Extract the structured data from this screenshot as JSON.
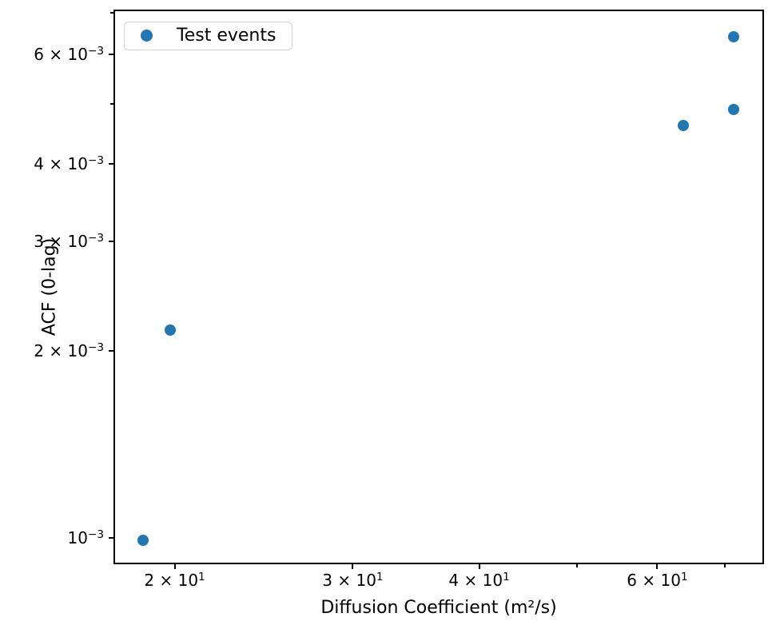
{
  "figure": {
    "background": "#ffffff"
  },
  "chart_data": {
    "type": "scatter",
    "title": "",
    "xlabel": "Diffusion Coefficient (m²/s)",
    "ylabel": "ACF (0-lag)",
    "xscale": "log",
    "yscale": "log",
    "xlim": [
      17.4,
      76.5
    ],
    "ylim": [
      0.000907,
      0.00709
    ],
    "grid": false,
    "legend": {
      "label": "Test events",
      "position": "upper-left"
    },
    "series": [
      {
        "name": "Test events",
        "marker": "circle",
        "color": "#1f77b4",
        "points": [
          {
            "x": 18.6,
            "y": 0.00099
          },
          {
            "x": 19.8,
            "y": 0.00216
          },
          {
            "x": 63.7,
            "y": 0.00461
          },
          {
            "x": 71.4,
            "y": 0.0049
          },
          {
            "x": 71.4,
            "y": 0.00641
          }
        ]
      }
    ],
    "x_ticks": [
      {
        "value": 20,
        "base": "2 × 10",
        "exp": "1"
      },
      {
        "value": 30,
        "base": "3 × 10",
        "exp": "1"
      },
      {
        "value": 40,
        "base": "4 × 10",
        "exp": "1"
      },
      {
        "value": 60,
        "base": "6 × 10",
        "exp": "1"
      }
    ],
    "x_minor_ticks": [
      50,
      70
    ],
    "y_ticks": [
      {
        "value": 0.001,
        "base": "10",
        "exp": "−3"
      },
      {
        "value": 0.002,
        "base": "2 × 10",
        "exp": "−3"
      },
      {
        "value": 0.003,
        "base": "3 × 10",
        "exp": "−3"
      },
      {
        "value": 0.004,
        "base": "4 × 10",
        "exp": "−3"
      },
      {
        "value": 0.006,
        "base": "6 × 10",
        "exp": "−3"
      }
    ],
    "y_minor_ticks": [
      0.005,
      0.007
    ],
    "colors": {
      "marker": "#1f77b4",
      "spine": "#000000",
      "legend_border": "#d3d3d3"
    }
  }
}
